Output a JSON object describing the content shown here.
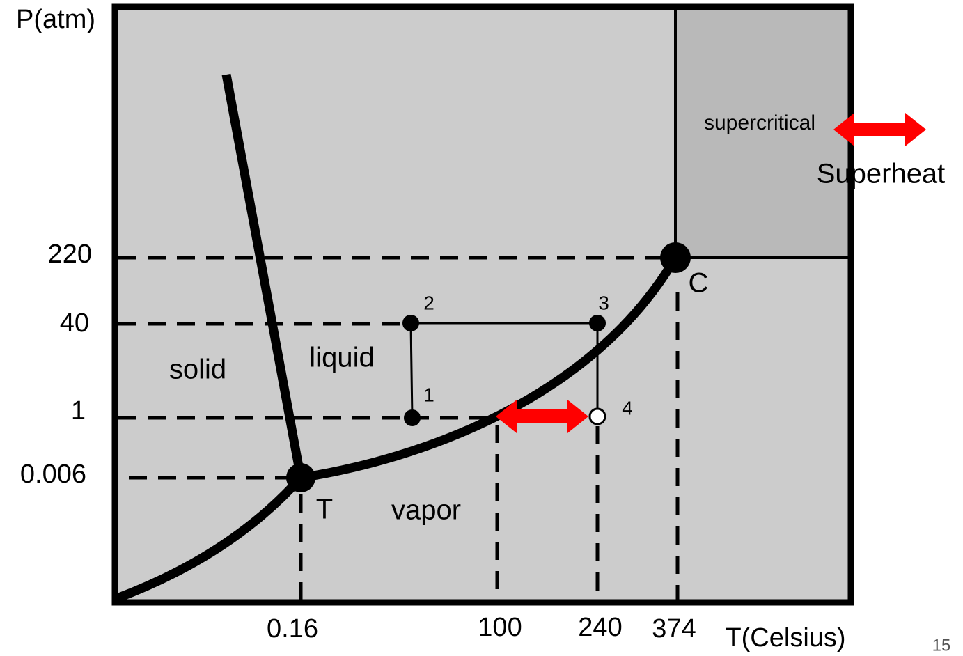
{
  "axes": {
    "y_label": "P(atm)",
    "x_label": "T(Celsius)",
    "y_ticks": [
      "220",
      "40",
      "1",
      "0.006"
    ],
    "x_ticks": [
      "0.16",
      "100",
      "240",
      "374"
    ]
  },
  "regions": {
    "solid": "solid",
    "liquid": "liquid",
    "vapor": "vapor",
    "supercritical": "supercritical"
  },
  "points": {
    "triple": "T",
    "critical": "C",
    "p1": "1",
    "p2": "2",
    "p3": "3",
    "p4": "4"
  },
  "annotation": "Superheat",
  "page_number": "15"
}
